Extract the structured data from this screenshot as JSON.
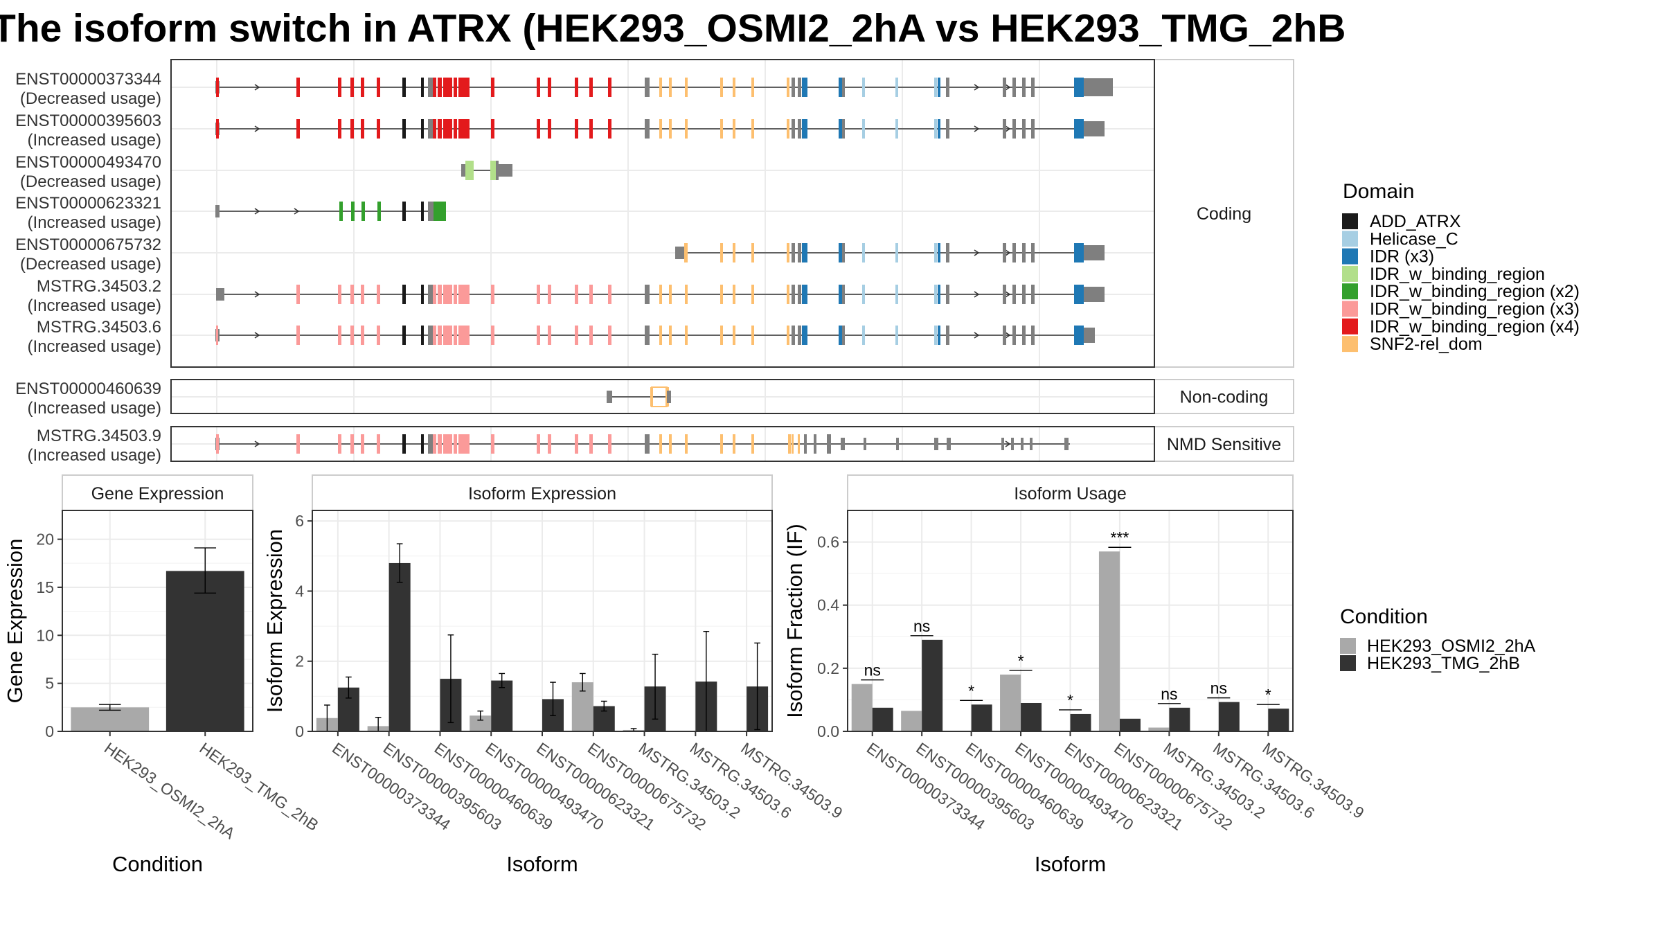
{
  "title": "The isoform switch in ATRX (HEK293_OSMI2_2hA vs HEK293_TMG_2hB",
  "chart_data": [
    {
      "type": "gene-structure",
      "sections": [
        {
          "label": "Coding",
          "transcripts": [
            {
              "name": "ENST00000373344",
              "usage": "(Decreased usage)"
            },
            {
              "name": "ENST00000395603",
              "usage": "(Increased usage)"
            },
            {
              "name": "ENST00000493470",
              "usage": "(Decreased usage)"
            },
            {
              "name": "ENST00000623321",
              "usage": "(Increased usage)"
            },
            {
              "name": "ENST00000675732",
              "usage": "(Decreased usage)"
            },
            {
              "name": "MSTRG.34503.2",
              "usage": "(Increased usage)"
            },
            {
              "name": "MSTRG.34503.6",
              "usage": "(Increased usage)"
            }
          ]
        },
        {
          "label": "Non-coding",
          "transcripts": [
            {
              "name": "ENST00000460639",
              "usage": "(Increased usage)"
            }
          ]
        },
        {
          "label": "NMD Sensitive",
          "transcripts": [
            {
              "name": "MSTRG.34503.9",
              "usage": "(Increased usage)"
            }
          ]
        }
      ],
      "legend": {
        "title": "Domain",
        "items": [
          {
            "label": "ADD_ATRX",
            "color": "#1a1a1a"
          },
          {
            "label": "Helicase_C",
            "color": "#a6cee3"
          },
          {
            "label": "IDR (x3)",
            "color": "#1f78b4"
          },
          {
            "label": "IDR_w_binding_region",
            "color": "#b2df8a"
          },
          {
            "label": "IDR_w_binding_region (x2)",
            "color": "#33a02c"
          },
          {
            "label": "IDR_w_binding_region (x3)",
            "color": "#fb9a99"
          },
          {
            "label": "IDR_w_binding_region (x4)",
            "color": "#e31a1c"
          },
          {
            "label": "SNF2-rel_dom",
            "color": "#fdbf6f"
          }
        ]
      }
    },
    {
      "type": "bar",
      "panel": "Gene Expression",
      "xlabel": "Condition",
      "ylabel": "Gene Expression",
      "ylim": [
        0,
        23
      ],
      "yticks": [
        0,
        5,
        10,
        15,
        20
      ],
      "categories": [
        "HEK293_OSMI2_2hA",
        "HEK293_TMG_2hB"
      ],
      "values": [
        2.5,
        16.7
      ],
      "error_low": [
        2.2,
        14.4
      ],
      "error_high": [
        2.8,
        19.1
      ]
    },
    {
      "type": "bar",
      "panel": "Isoform Expression",
      "xlabel": "Isoform",
      "ylabel": "Isoform Expression",
      "ylim": [
        0,
        6.3
      ],
      "yticks": [
        0,
        2,
        4,
        6
      ],
      "categories": [
        "ENST00000373344",
        "ENST00000395603",
        "ENST00000460639",
        "ENST00000493470",
        "ENST00000623321",
        "ENST00000675732",
        "MSTRG.34503.2",
        "MSTRG.34503.6",
        "MSTRG.34503.9"
      ],
      "series": [
        {
          "name": "HEK293_OSMI2_2hA",
          "values": [
            0.38,
            0.15,
            0.0,
            0.45,
            0.0,
            1.4,
            0.04,
            0.0,
            0.0
          ],
          "error_low": [
            0.0,
            0.0,
            0.0,
            0.32,
            0.0,
            1.15,
            0.0,
            0.0,
            0.0
          ],
          "error_high": [
            0.75,
            0.4,
            0.0,
            0.58,
            0.0,
            1.65,
            0.08,
            0.0,
            0.0
          ]
        },
        {
          "name": "HEK293_TMG_2hB",
          "values": [
            1.25,
            4.8,
            1.5,
            1.45,
            0.92,
            0.72,
            1.28,
            1.42,
            1.28
          ],
          "error_low": [
            0.95,
            4.25,
            0.25,
            1.25,
            0.45,
            0.58,
            0.35,
            0.0,
            0.05
          ],
          "error_high": [
            1.55,
            5.35,
            2.75,
            1.65,
            1.4,
            0.86,
            2.2,
            2.85,
            2.52
          ]
        }
      ]
    },
    {
      "type": "bar",
      "panel": "Isoform Usage",
      "xlabel": "Isoform",
      "ylabel": "Isoform Fraction (IF)",
      "ylim": [
        0,
        0.7
      ],
      "yticks": [
        0.0,
        0.2,
        0.4,
        0.6
      ],
      "ytick_labels": [
        "0.0",
        "0.2",
        "0.4",
        "0.6"
      ],
      "categories": [
        "ENST00000373344",
        "ENST00000395603",
        "ENST00000460639",
        "ENST00000493470",
        "ENST00000623321",
        "ENST00000675732",
        "MSTRG.34503.2",
        "MSTRG.34503.6",
        "MSTRG.34503.9"
      ],
      "series": [
        {
          "name": "HEK293_OSMI2_2hA",
          "values": [
            0.15,
            0.065,
            0.0,
            0.18,
            0.0,
            0.57,
            0.012,
            0.0,
            0.0
          ]
        },
        {
          "name": "HEK293_TMG_2hB",
          "values": [
            0.075,
            0.29,
            0.085,
            0.09,
            0.055,
            0.04,
            0.075,
            0.093,
            0.072
          ]
        }
      ],
      "significance": [
        "ns",
        "ns",
        "*",
        "*",
        "*",
        "***",
        "ns",
        "ns",
        "*"
      ]
    }
  ],
  "condition_legend": {
    "title": "Condition",
    "items": [
      {
        "label": "HEK293_OSMI2_2hA",
        "color": "#a9a9a9"
      },
      {
        "label": "HEK293_TMG_2hB",
        "color": "#333333"
      }
    ]
  }
}
